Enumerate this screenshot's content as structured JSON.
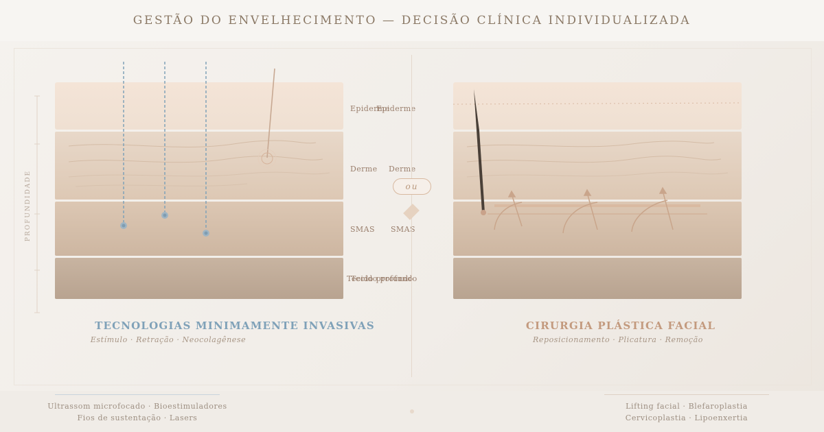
{
  "header": {
    "title": "GESTÃO DO ENVELHECIMENTO — DECISÃO CLÍNICA INDIVIDUALIZADA"
  },
  "depth_axis": {
    "label": "PROFUNDIDADE"
  },
  "layers": {
    "left": [
      "Epiderme",
      "Derme",
      "SMAS",
      "Tecido profundo"
    ],
    "right": [
      "Epiderme",
      "Derme",
      "SMAS",
      "Tecido profundo"
    ]
  },
  "center": {
    "connector": "ou"
  },
  "left_panel": {
    "title": "TECNOLOGIAS MINIMAMENTE INVASIVAS",
    "subtitle": "Estímulo · Retração · Neocolagênese",
    "accent": "#7fa1b8"
  },
  "right_panel": {
    "title": "CIRURGIA PLÁSTICA FACIAL",
    "subtitle": "Reposicionamento · Plicatura · Remoção",
    "accent": "#c39a7e"
  },
  "footer": {
    "left_line1": "Ultrassom microfocado · Bioestimuladores",
    "left_line2": "Fios de sustentação · Lasers",
    "right_line1": "Lifting facial · Blefaroplastia",
    "right_line2": "Cervicoplastia · Lipoenxertia"
  },
  "colors": {
    "epiderme": "#f2e3d6",
    "derme": "#e4d2c1",
    "smas": "#d6c1ac",
    "deep": "#c2ad99",
    "probe": "#7fa1b8",
    "surgical": "#c8a98f"
  },
  "icons": [
    "ultrasound-probe-icon",
    "thread-needle-icon",
    "scalpel-icon",
    "suture-hook-icon"
  ]
}
